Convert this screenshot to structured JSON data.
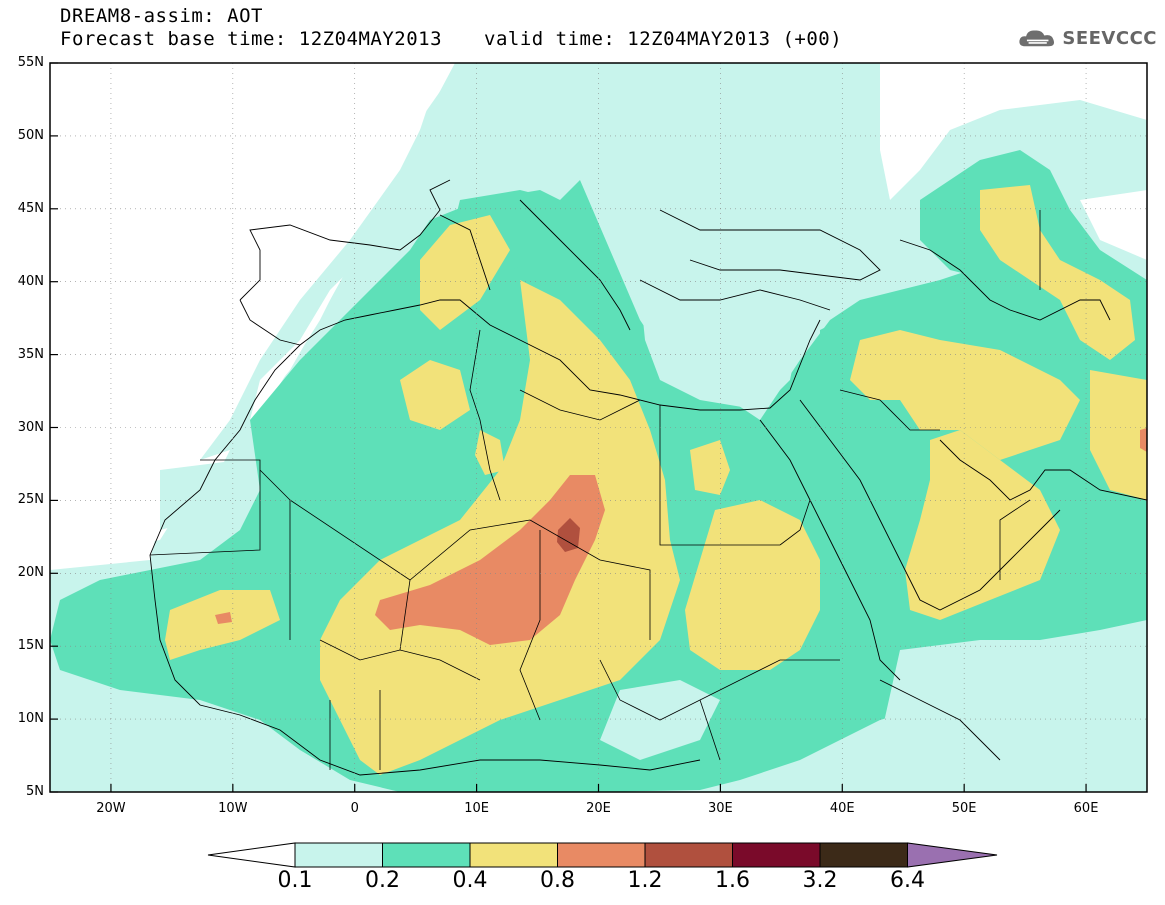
{
  "header": {
    "title_line1": "DREAM8-assim: AOT",
    "title_line2": "Forecast base time: 12Z04MAY2013",
    "valid_time": "valid time: 12Z04MAY2013 (+00)",
    "logo_text": "SEEVCCC"
  },
  "map": {
    "lat_labels": [
      "55N",
      "50N",
      "45N",
      "40N",
      "35N",
      "30N",
      "25N",
      "20N",
      "15N",
      "10N",
      "5N"
    ],
    "lon_labels": [
      "20W",
      "10W",
      "0",
      "10E",
      "20E",
      "30E",
      "40E",
      "50E",
      "60E"
    ],
    "lat_values": [
      55,
      50,
      45,
      40,
      35,
      30,
      25,
      20,
      15,
      10,
      5
    ],
    "lon_values": [
      -20,
      -10,
      0,
      10,
      20,
      30,
      40,
      50,
      60
    ],
    "lon_range": [
      -25,
      65
    ],
    "lat_range": [
      5,
      55
    ],
    "grid": "dotted"
  },
  "legend": {
    "labels": [
      "0.1",
      "0.2",
      "0.4",
      "0.8",
      "1.2",
      "1.6",
      "3.2",
      "6.4"
    ],
    "colors": [
      "#ffffff",
      "#c8f4ec",
      "#5ee0b8",
      "#f2e27a",
      "#e88a64",
      "#b0503e",
      "#7a0a2a",
      "#3c2a18",
      "#9a70b0"
    ]
  },
  "colors": {
    "level_0": "#ffffff",
    "level_1": "#c8f4ec",
    "level_2": "#5ee0b8",
    "level_3": "#f2e27a",
    "level_4": "#e88a64",
    "level_5": "#b0503e"
  }
}
